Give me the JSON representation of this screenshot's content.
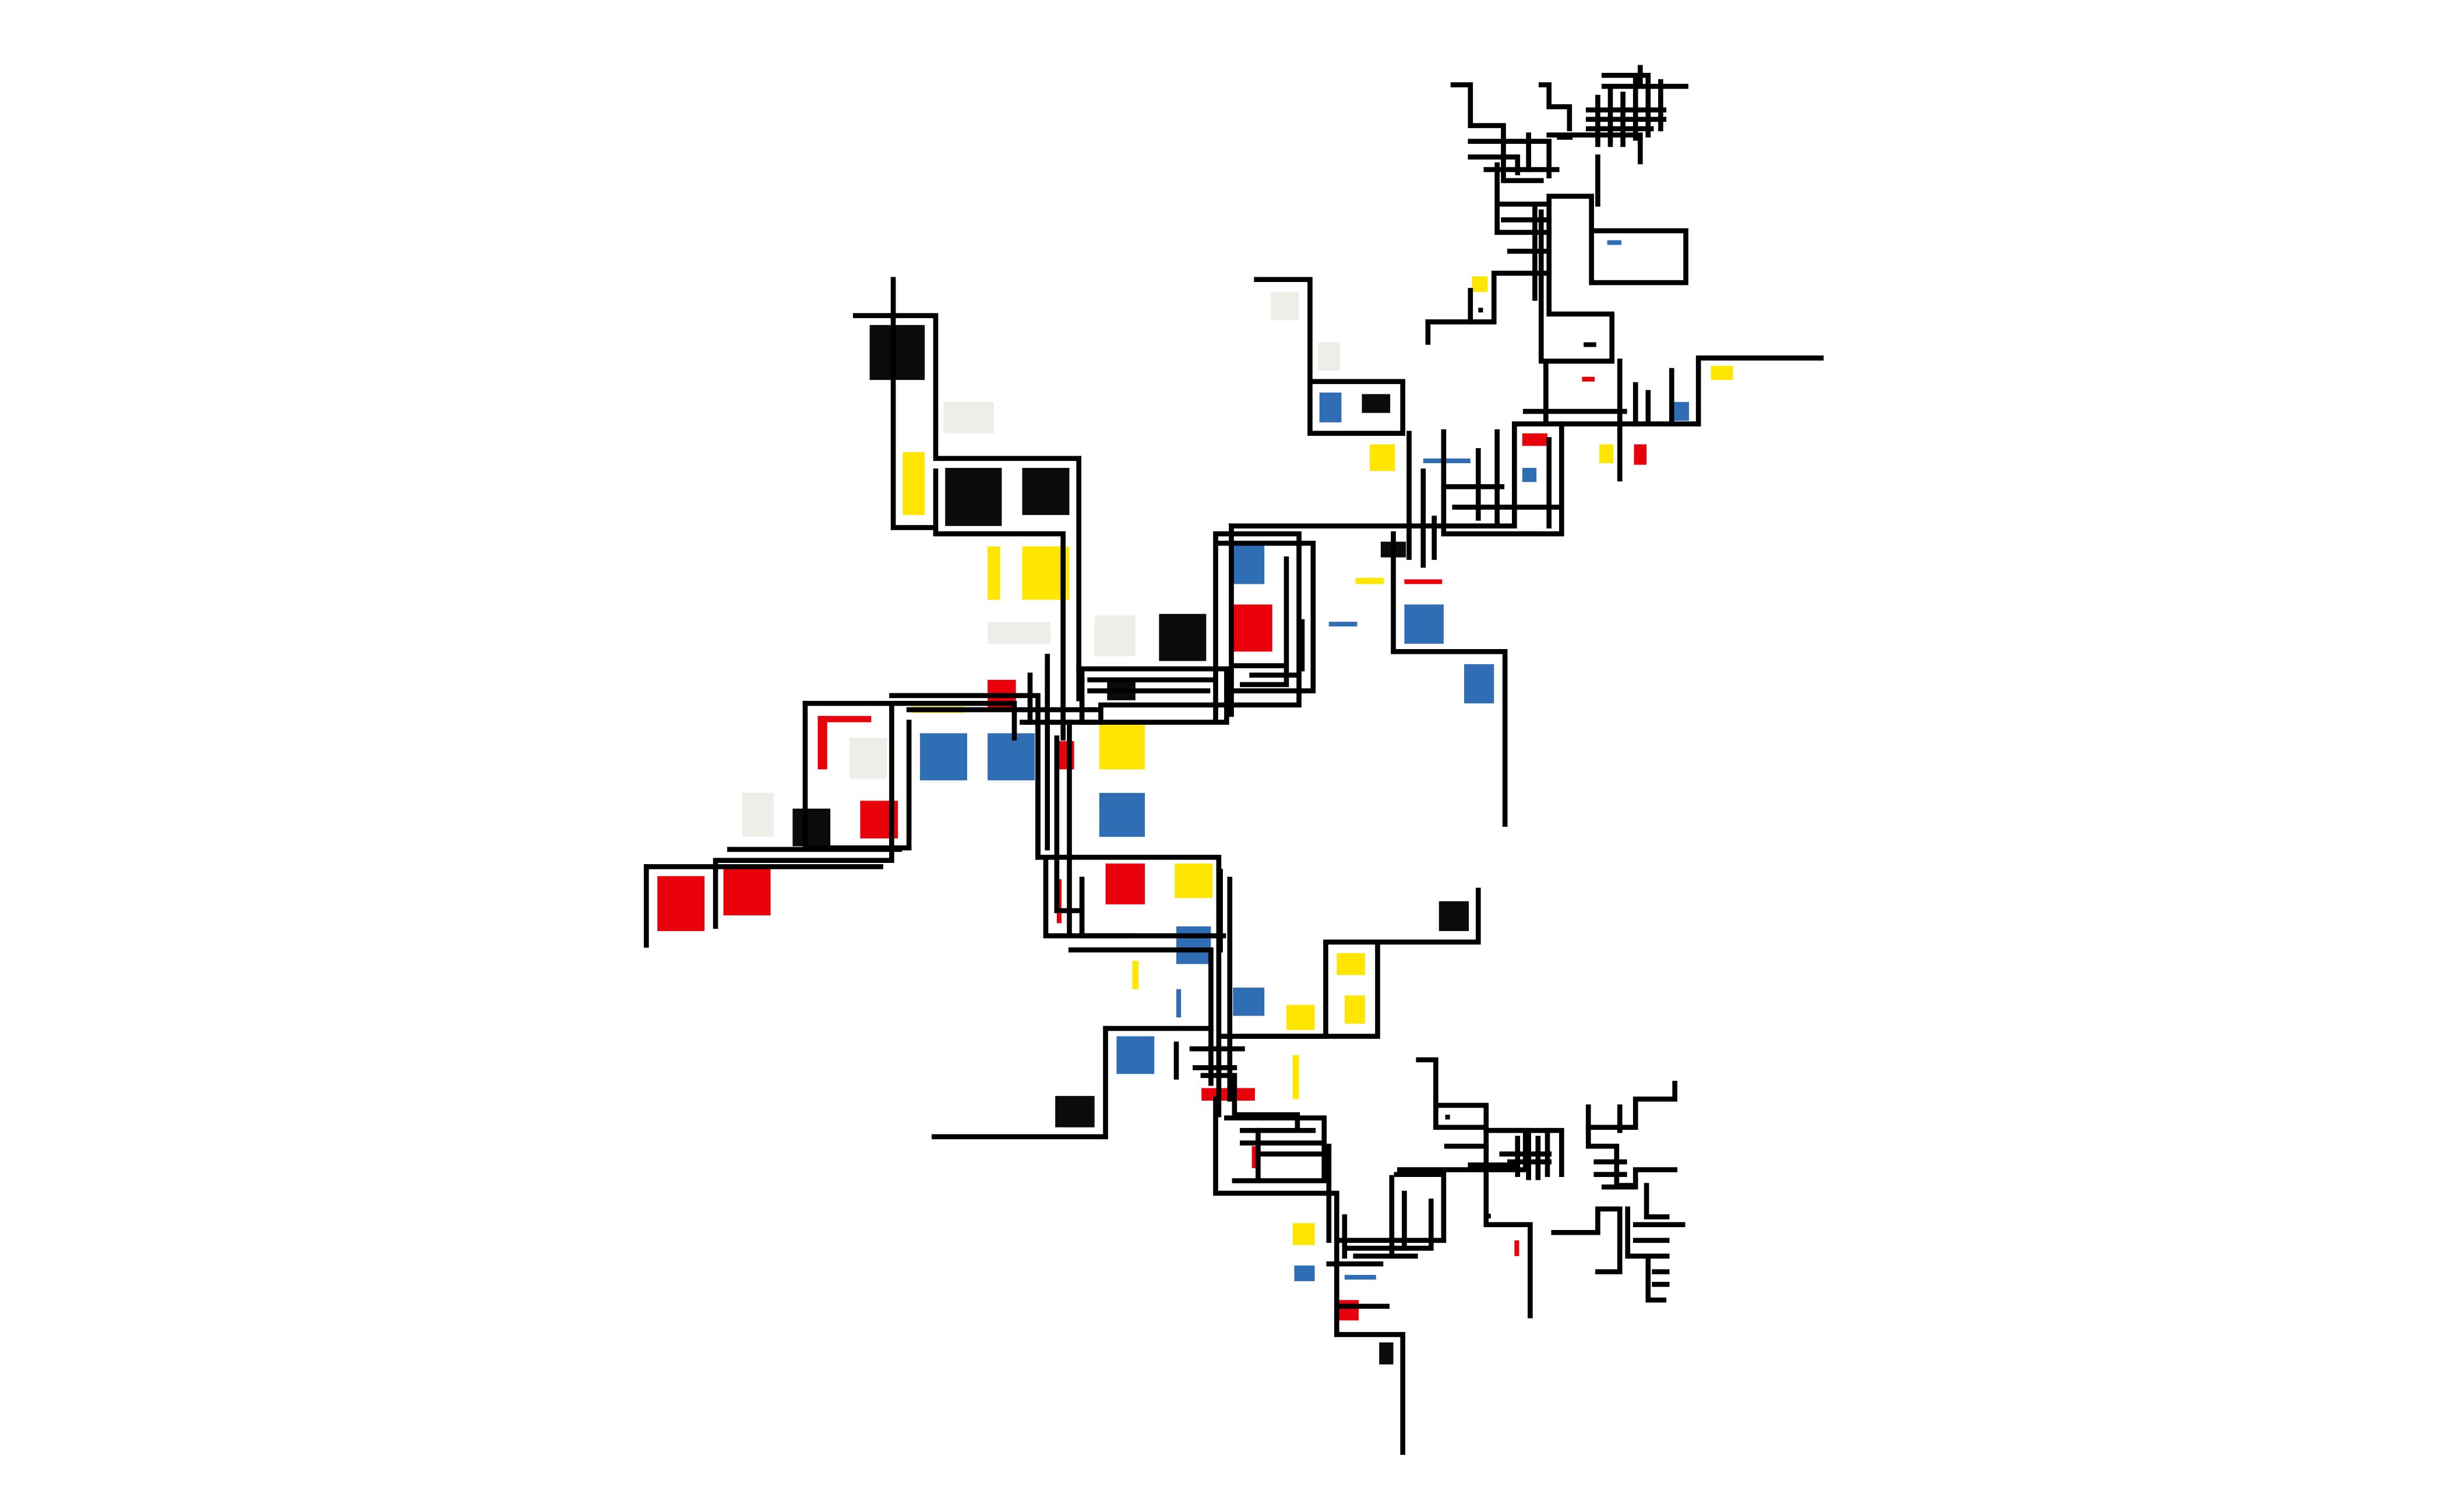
{
  "artwork": {
    "description_visible_text": "",
    "palette": {
      "background": "#ffffff",
      "line": "#000000",
      "black_block": "#0b0b0b",
      "red": "#e8000b",
      "blue": "#2f6db5",
      "yellow": "#ffe600",
      "offwhite": "#eeeee8"
    }
  }
}
